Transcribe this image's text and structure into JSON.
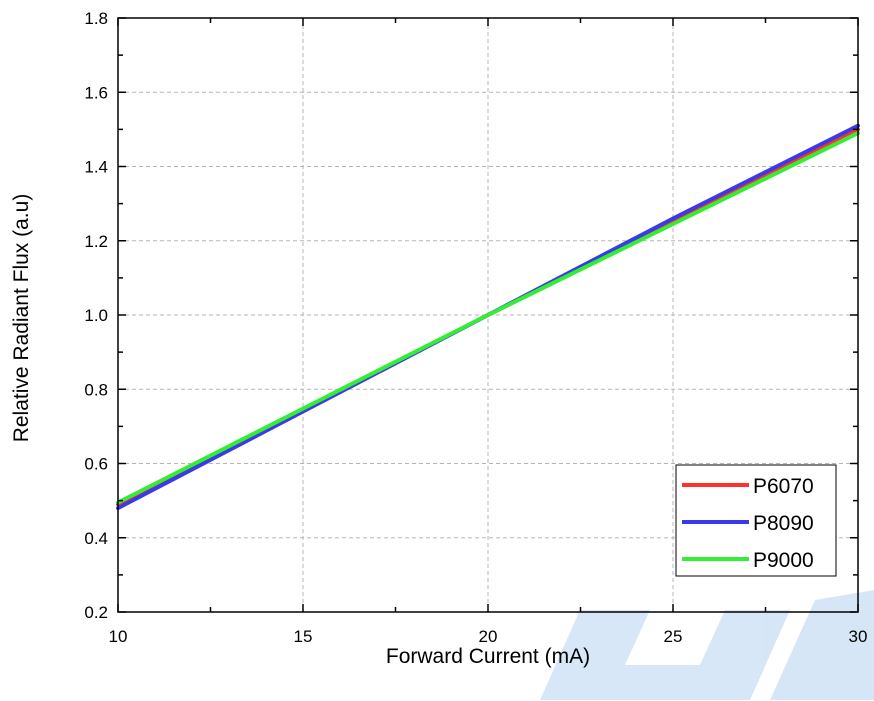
{
  "chart_data": {
    "type": "line",
    "title": "",
    "xlabel": "Forward Current (mA)",
    "ylabel": "Relative Radiant Flux (a.u)",
    "xlim": [
      10,
      30
    ],
    "ylim": [
      0.2,
      1.8
    ],
    "xticks": [
      10,
      15,
      20,
      25,
      30
    ],
    "yticks": [
      0.2,
      0.4,
      0.6,
      0.8,
      1.0,
      1.2,
      1.4,
      1.6,
      1.8
    ],
    "xtick_labels": [
      "10",
      "15",
      "20",
      "25",
      "30"
    ],
    "ytick_labels": [
      "0.2",
      "0.4",
      "0.6",
      "0.8",
      "1.0",
      "1.2",
      "1.4",
      "1.6",
      "1.8"
    ],
    "grid": true,
    "legend_position": "bottom-right",
    "series": [
      {
        "name": "P6070",
        "color": "#ff3030",
        "x": [
          10,
          15,
          20,
          25,
          30
        ],
        "y": [
          0.49,
          0.745,
          1.0,
          1.25,
          1.5
        ]
      },
      {
        "name": "P8090",
        "color": "#3a3ae8",
        "x": [
          10,
          15,
          20,
          25,
          30
        ],
        "y": [
          0.48,
          0.74,
          1.0,
          1.26,
          1.51
        ]
      },
      {
        "name": "P9000",
        "color": "#33ee33",
        "x": [
          10,
          15,
          20,
          25,
          30
        ],
        "y": [
          0.495,
          0.748,
          1.0,
          1.245,
          1.49
        ]
      }
    ]
  }
}
